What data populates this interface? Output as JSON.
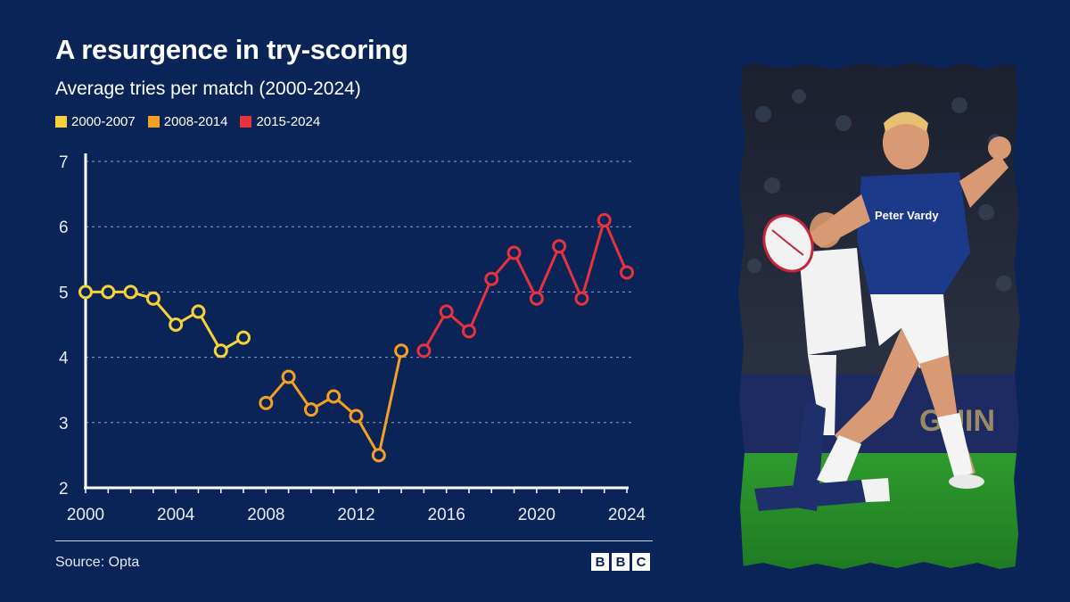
{
  "title": "A resurgence in try-scoring",
  "subtitle": "Average tries per match (2000-2024)",
  "legend": [
    {
      "label": "2000-2007",
      "color": "#f6d23a"
    },
    {
      "label": "2008-2014",
      "color": "#f4a021"
    },
    {
      "label": "2015-2024",
      "color": "#e8323c"
    }
  ],
  "source": "Source: Opta",
  "logo": {
    "letters": [
      "B",
      "B",
      "C"
    ]
  },
  "photo": {
    "description_icon": "rugby-player-photo",
    "sponsor_text": "Peter Vardy"
  },
  "chart_data": {
    "type": "line",
    "title": "A resurgence in try-scoring",
    "subtitle": "Average tries per match (2000-2024)",
    "xlabel": "",
    "ylabel": "",
    "xlim": [
      2000,
      2024
    ],
    "ylim": [
      2,
      7
    ],
    "x_ticks": [
      2000,
      2004,
      2008,
      2012,
      2016,
      2020,
      2024
    ],
    "y_ticks": [
      2,
      3,
      4,
      5,
      6,
      7
    ],
    "grid": true,
    "legend_position": "top-left",
    "series": [
      {
        "name": "2000-2007",
        "color": "#f6d23a",
        "x": [
          2000,
          2001,
          2002,
          2003,
          2004,
          2005,
          2006,
          2007
        ],
        "y": [
          5.0,
          5.0,
          5.0,
          4.9,
          4.5,
          4.7,
          4.1,
          4.3
        ]
      },
      {
        "name": "2008-2014",
        "color": "#f4a021",
        "x": [
          2008,
          2009,
          2010,
          2011,
          2012,
          2013,
          2014
        ],
        "y": [
          3.3,
          3.7,
          3.2,
          3.4,
          3.1,
          2.5,
          4.1
        ]
      },
      {
        "name": "2015-2024",
        "color": "#e8323c",
        "x": [
          2015,
          2016,
          2017,
          2018,
          2019,
          2020,
          2021,
          2022,
          2023,
          2024
        ],
        "y": [
          4.1,
          4.7,
          4.4,
          5.2,
          5.6,
          4.9,
          5.7,
          4.9,
          6.1,
          5.3
        ]
      }
    ]
  }
}
